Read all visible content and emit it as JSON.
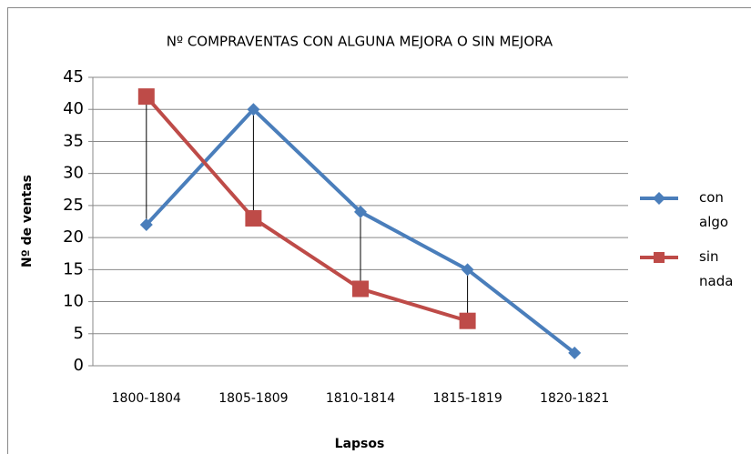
{
  "chart_data": {
    "type": "line",
    "title": "Nº COMPRAVENTAS CON ALGUNA MEJORA O SIN MEJORA",
    "x_label": "Lapsos",
    "y_label": "Nº de ventas",
    "categories": [
      "1800-1804",
      "1805-1809",
      "1810-1814",
      "1815-1819",
      "1820-1821"
    ],
    "series": [
      {
        "name": "con algo",
        "color": "#4a7ebb",
        "values": [
          22,
          40,
          24,
          15,
          2
        ]
      },
      {
        "name": "sin nada",
        "color": "#be4b48",
        "values": [
          42,
          23,
          12,
          7,
          null
        ]
      }
    ],
    "ylim": [
      0,
      45
    ],
    "yticks": [
      0,
      5,
      10,
      15,
      20,
      25,
      30,
      35,
      40,
      45
    ],
    "grid": true,
    "legend": "right",
    "drop_lines": true
  }
}
